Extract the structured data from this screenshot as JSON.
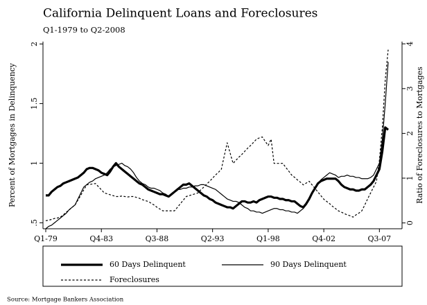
{
  "chart_data": {
    "type": "line",
    "title": "California Delinquent Loans and Foreclosures",
    "subtitle": "Q1-1979 to Q2-2008",
    "y_label": "Percent of Mortgages in Delinquency",
    "y2_label": "Ratio of Foreclosures to Mortgages",
    "source": "Source: Mortgage Bankers Association",
    "categories": [
      "Q1-79",
      null,
      null,
      null,
      null,
      null,
      null,
      null,
      null,
      null,
      null,
      null,
      null,
      null,
      null,
      null,
      null,
      null,
      null,
      "Q4-83",
      null,
      null,
      null,
      null,
      null,
      null,
      null,
      null,
      null,
      null,
      null,
      null,
      null,
      null,
      null,
      null,
      null,
      null,
      "Q3-88",
      null,
      null,
      null,
      null,
      null,
      null,
      null,
      null,
      null,
      null,
      null,
      null,
      null,
      null,
      null,
      null,
      null,
      null,
      "Q2-93",
      null,
      null,
      null,
      null,
      null,
      null,
      null,
      null,
      null,
      null,
      null,
      null,
      null,
      null,
      null,
      null,
      null,
      null,
      "Q1-98",
      null,
      null,
      null,
      null,
      null,
      null,
      null,
      null,
      null,
      null,
      null,
      null,
      null,
      null,
      null,
      null,
      null,
      null,
      "Q4-02",
      null,
      null,
      null,
      null,
      null,
      null,
      null,
      null,
      null,
      null,
      null,
      null,
      null,
      null,
      null,
      null,
      null,
      null,
      "Q3-07",
      null,
      null,
      null
    ],
    "series": [
      {
        "name": "60 Days Delinquent",
        "color": "#000000",
        "linestyle": "solid",
        "linewidth": 3.2,
        "values": [
          0.73,
          0.73,
          0.76,
          0.78,
          0.8,
          0.81,
          0.83,
          0.84,
          0.85,
          0.86,
          0.87,
          0.88,
          0.9,
          0.92,
          0.95,
          0.96,
          0.96,
          0.95,
          0.94,
          0.92,
          0.91,
          0.9,
          0.93,
          0.97,
          1.0,
          0.97,
          0.95,
          0.93,
          0.91,
          0.89,
          0.87,
          0.85,
          0.83,
          0.82,
          0.8,
          0.78,
          0.77,
          0.76,
          0.75,
          0.74,
          0.74,
          0.73,
          0.72,
          0.74,
          0.76,
          0.78,
          0.8,
          0.82,
          0.82,
          0.83,
          0.81,
          0.79,
          0.77,
          0.75,
          0.73,
          0.72,
          0.7,
          0.69,
          0.67,
          0.66,
          0.65,
          0.64,
          0.63,
          0.63,
          0.62,
          0.64,
          0.66,
          0.68,
          0.68,
          0.67,
          0.67,
          0.68,
          0.67,
          0.69,
          0.7,
          0.71,
          0.72,
          0.72,
          0.71,
          0.71,
          0.7,
          0.7,
          0.69,
          0.69,
          0.68,
          0.68,
          0.66,
          0.64,
          0.63,
          0.66,
          0.7,
          0.75,
          0.79,
          0.83,
          0.85,
          0.86,
          0.87,
          0.87,
          0.87,
          0.87,
          0.85,
          0.82,
          0.8,
          0.79,
          0.78,
          0.78,
          0.77,
          0.77,
          0.78,
          0.78,
          0.8,
          0.82,
          0.85,
          0.9,
          0.95,
          1.1,
          1.3,
          1.28
        ]
      },
      {
        "name": "90 Days Delinquent",
        "color": "#000000",
        "linestyle": "solid",
        "linewidth": 1.2,
        "values": [
          0.45,
          0.47,
          0.48,
          0.5,
          0.52,
          0.54,
          0.56,
          0.58,
          0.61,
          0.63,
          0.65,
          0.7,
          0.75,
          0.8,
          0.82,
          0.84,
          0.85,
          0.87,
          0.88,
          0.89,
          0.9,
          0.92,
          0.95,
          0.97,
          0.98,
          0.99,
          1.0,
          0.98,
          0.97,
          0.95,
          0.92,
          0.88,
          0.85,
          0.83,
          0.82,
          0.8,
          0.79,
          0.79,
          0.78,
          0.77,
          0.75,
          0.74,
          0.72,
          0.74,
          0.76,
          0.78,
          0.78,
          0.79,
          0.79,
          0.8,
          0.8,
          0.81,
          0.81,
          0.82,
          0.82,
          0.81,
          0.8,
          0.79,
          0.78,
          0.76,
          0.74,
          0.72,
          0.7,
          0.69,
          0.68,
          0.68,
          0.67,
          0.65,
          0.63,
          0.62,
          0.6,
          0.6,
          0.59,
          0.59,
          0.58,
          0.59,
          0.6,
          0.61,
          0.62,
          0.62,
          0.61,
          0.61,
          0.6,
          0.6,
          0.59,
          0.59,
          0.58,
          0.6,
          0.62,
          0.65,
          0.7,
          0.75,
          0.8,
          0.83,
          0.86,
          0.88,
          0.9,
          0.92,
          0.91,
          0.9,
          0.88,
          0.89,
          0.89,
          0.9,
          0.89,
          0.89,
          0.88,
          0.88,
          0.87,
          0.87,
          0.87,
          0.88,
          0.9,
          0.95,
          1.0,
          1.2,
          1.5,
          1.85
        ]
      },
      {
        "name": "Foreclosures",
        "color": "#000000",
        "linestyle": "dashed",
        "linewidth": 1.2,
        "axis": "y2",
        "values": [
          0.05,
          0.06,
          0.08,
          0.1,
          0.11,
          0.13,
          0.18,
          0.24,
          0.29,
          0.35,
          0.4,
          0.51,
          0.62,
          0.74,
          0.85,
          0.86,
          0.87,
          0.88,
          0.81,
          0.74,
          0.67,
          0.65,
          0.63,
          0.61,
          0.59,
          0.59,
          0.6,
          0.59,
          0.58,
          0.59,
          0.59,
          0.57,
          0.55,
          0.52,
          0.5,
          0.48,
          0.44,
          0.4,
          0.35,
          0.31,
          0.27,
          0.27,
          0.27,
          0.27,
          0.27,
          0.35,
          0.43,
          0.51,
          0.59,
          0.61,
          0.63,
          0.65,
          0.67,
          0.74,
          0.8,
          0.87,
          0.93,
          1.0,
          1.07,
          1.13,
          1.2,
          1.5,
          1.79,
          1.56,
          1.33,
          1.4,
          1.47,
          1.53,
          1.6,
          1.67,
          1.73,
          1.8,
          1.87,
          1.9,
          1.92,
          1.82,
          1.73,
          1.87,
          1.33,
          1.33,
          1.33,
          1.33,
          1.24,
          1.16,
          1.07,
          1.02,
          0.96,
          0.91,
          0.85,
          0.89,
          0.93,
          0.85,
          0.77,
          0.69,
          0.61,
          0.53,
          0.48,
          0.43,
          0.37,
          0.32,
          0.27,
          0.24,
          0.21,
          0.18,
          0.16,
          0.13,
          0.18,
          0.22,
          0.27,
          0.4,
          0.54,
          0.67,
          0.8,
          0.93,
          1.4,
          2.13,
          3.2,
          3.87
        ]
      }
    ],
    "ylim": [
      0.45,
      2.02
    ],
    "yticks": [
      {
        "value": 0.5,
        "label": ".5"
      },
      1,
      1.5,
      2
    ],
    "y2lim": [
      -0.13,
      4.05
    ],
    "y2ticks": [
      0,
      1,
      2,
      3,
      4
    ],
    "grid": false
  }
}
